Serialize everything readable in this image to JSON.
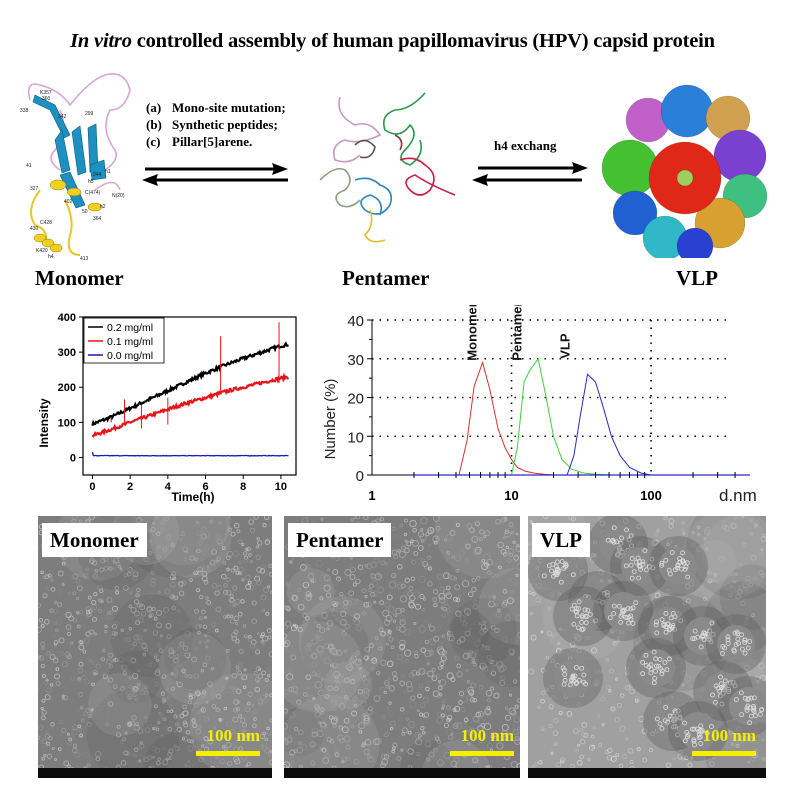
{
  "title": {
    "italic": "In vitro",
    "rest": " controlled assembly of human papillomavirus (HPV) capsid protein"
  },
  "stages": {
    "monomer": "Monomer",
    "pentamer": "Pentamer",
    "vlp": "VLP"
  },
  "monomer_structure_labels": [
    "K357",
    "360",
    "338",
    "342",
    "299",
    "41",
    "h1",
    "244",
    "h5",
    "327",
    "C(474)",
    "N(20)",
    "402",
    "h2",
    "50",
    "364",
    "C428",
    "430",
    "K420",
    "h4",
    "413"
  ],
  "conditions": [
    {
      "key": "(a)",
      "text": "Mono-site mutation;"
    },
    {
      "key": "(b)",
      "text": "Synthetic peptides;"
    },
    {
      "key": "(c)",
      "text": "Pillar[5]arene."
    }
  ],
  "exchange_label": "h4 exchang",
  "colors": {
    "black_series": "#000000",
    "red_series": "#e8141a",
    "blue_series": "#1b1bb0",
    "dls_monomer": "#e03030",
    "dls_pentamer": "#3cd23c",
    "dls_vlp": "#2a2ac8",
    "scale_bar": "#f4f000"
  },
  "chart_data": [
    {
      "type": "line",
      "title": "",
      "xlabel": "Time(h)",
      "ylabel": "Intensity",
      "xlim": [
        -0.5,
        10.8
      ],
      "ylim": [
        -50,
        400
      ],
      "xticks": [
        0,
        2,
        4,
        6,
        8,
        10
      ],
      "yticks": [
        0,
        100,
        200,
        300,
        400
      ],
      "legend_position": "top-left",
      "grid": false,
      "series": [
        {
          "name": "0.2 mg/ml",
          "color": "#000000",
          "x": [
            0,
            1,
            2,
            3,
            4,
            5,
            6,
            7,
            8,
            9,
            10,
            10.4
          ],
          "y": [
            95,
            115,
            140,
            165,
            190,
            215,
            240,
            262,
            282,
            300,
            318,
            322
          ]
        },
        {
          "name": "0.1 mg/ml",
          "color": "#e8141a",
          "x": [
            0,
            1,
            2,
            3,
            4,
            5,
            6,
            7,
            8,
            9,
            10,
            10.4
          ],
          "y": [
            62,
            80,
            100,
            118,
            137,
            155,
            170,
            187,
            200,
            213,
            226,
            230
          ],
          "spikes": [
            {
              "x": 1.0,
              "y": 115
            },
            {
              "x": 1.7,
              "y": 165
            },
            {
              "x": 2.6,
              "y": 150
            },
            {
              "x": 4.0,
              "y": 170
            },
            {
              "x": 6.8,
              "y": 345
            },
            {
              "x": 9.9,
              "y": 385
            }
          ]
        },
        {
          "name": "0.0 mg/ml",
          "color": "#1b1bb0",
          "x": [
            0,
            0.05,
            2,
            4,
            6,
            8,
            10,
            10.4
          ],
          "y": [
            15,
            5,
            5,
            5,
            5,
            5,
            5,
            5
          ]
        }
      ]
    },
    {
      "type": "line",
      "title": "",
      "xlabel": "d.nm",
      "ylabel": "Number (%)",
      "xscale": "log",
      "xlim": [
        1,
        1000
      ],
      "ylim": [
        0,
        40
      ],
      "xtick_labels": [
        "1",
        "10",
        "100"
      ],
      "yticks": [
        0,
        10,
        20,
        30,
        40
      ],
      "grid": true,
      "series": [
        {
          "name": "Monomer",
          "color": "#e03030",
          "x": [
            4.2,
            4.8,
            5.4,
            6.2,
            7.0,
            8.0,
            9.0,
            10.0,
            11.0,
            12.5,
            14.5,
            17.0,
            20.0
          ],
          "y": [
            0,
            9,
            23,
            29,
            22,
            12,
            7,
            4,
            2,
            1,
            0.5,
            0.2,
            0
          ]
        },
        {
          "name": "Pentamer",
          "color": "#3cd23c",
          "x": [
            10.0,
            11.0,
            12.3,
            13.5,
            15.5,
            17.5,
            20.0,
            23.0,
            27.0,
            33.0,
            40.0,
            50.0,
            70.0,
            90.0
          ],
          "y": [
            0,
            7,
            24,
            27,
            30,
            21,
            10,
            4,
            1.5,
            0.5,
            0.2,
            0,
            0,
            0
          ]
        },
        {
          "name": "VLP",
          "color": "#2a2ac8",
          "x": [
            25.0,
            28.0,
            31.0,
            35.0,
            40.0,
            45.0,
            52.0,
            60.0,
            70.0,
            85.0,
            100.0
          ],
          "y": [
            0,
            5,
            15,
            26,
            24,
            18,
            10,
            5,
            2,
            0.5,
            0
          ]
        }
      ],
      "peak_labels": [
        "Monomer",
        "Pentamer",
        "VLP"
      ]
    }
  ],
  "em_panels": [
    {
      "label": "Monomer",
      "scale": "100 nm"
    },
    {
      "label": "Pentamer",
      "scale": "100 nm"
    },
    {
      "label": "VLP",
      "scale": "100 nm"
    }
  ]
}
